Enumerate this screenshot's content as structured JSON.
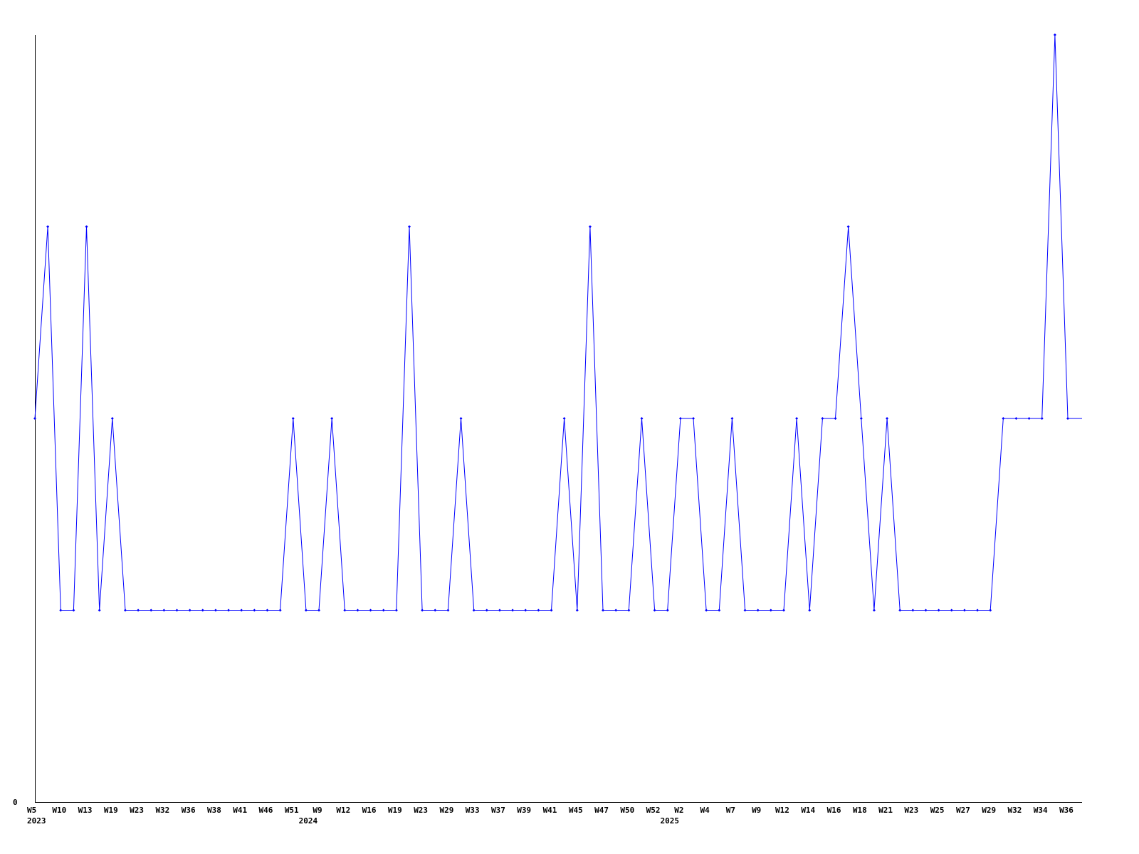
{
  "chart_data": {
    "type": "line",
    "title": "",
    "xlabel": "",
    "ylabel": "",
    "ylim": [
      0,
      4
    ],
    "y_tick_labels": [
      "0"
    ],
    "grid": false,
    "legend": "none",
    "color": "#0000ff",
    "x_tick_labels": [
      "W5",
      "W10",
      "W13",
      "W19",
      "W23",
      "W32",
      "W36",
      "W38",
      "W41",
      "W46",
      "W51",
      "W9",
      "W12",
      "W16",
      "W19",
      "W23",
      "W29",
      "W33",
      "W37",
      "W39",
      "W41",
      "W45",
      "W47",
      "W50",
      "W52",
      "W2",
      "W4",
      "W7",
      "W9",
      "W12",
      "W14",
      "W16",
      "W18",
      "W21",
      "W23",
      "W25",
      "W27",
      "W29",
      "W32",
      "W34",
      "W36"
    ],
    "year_labels": [
      {
        "label": "2023",
        "at_tick": "W5"
      },
      {
        "label": "2024",
        "at_point": 21
      },
      {
        "label": "2025",
        "at_point": 49
      }
    ],
    "values": [
      2,
      3,
      1,
      1,
      3,
      1,
      2,
      1,
      1,
      1,
      1,
      1,
      1,
      1,
      1,
      1,
      1,
      1,
      1,
      1,
      2,
      1,
      1,
      2,
      1,
      1,
      1,
      1,
      1,
      3,
      1,
      1,
      1,
      2,
      1,
      1,
      1,
      1,
      1,
      1,
      1,
      2,
      1,
      3,
      1,
      1,
      1,
      2,
      1,
      1,
      2,
      2,
      1,
      1,
      2,
      1,
      1,
      1,
      1,
      2,
      1,
      2,
      2,
      3,
      2,
      1,
      2,
      1,
      1,
      1,
      1,
      1,
      1,
      1,
      1,
      2,
      2,
      2,
      2,
      4,
      2
    ]
  }
}
